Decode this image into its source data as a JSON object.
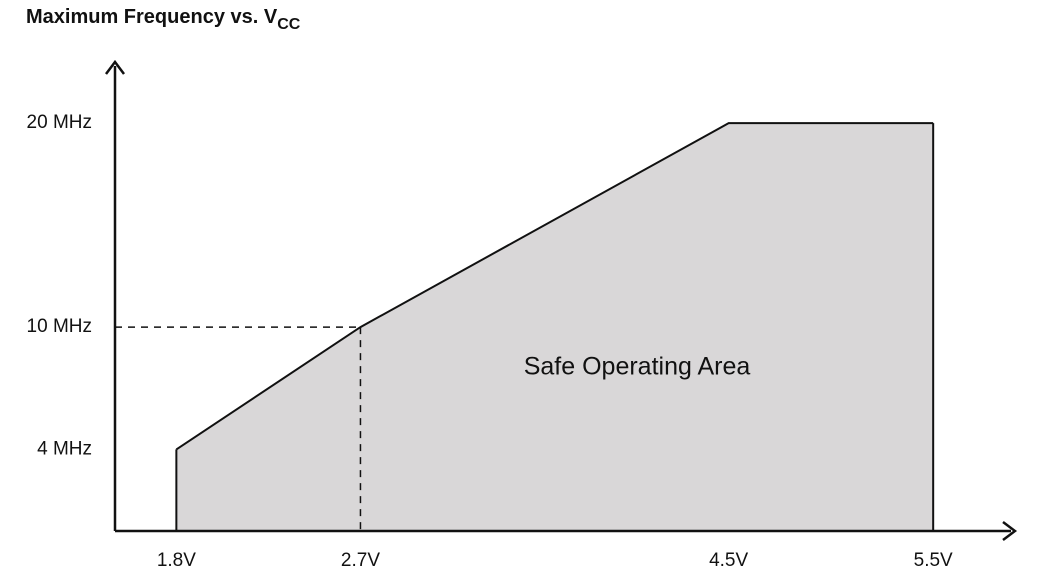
{
  "chart_data": {
    "type": "area",
    "title": "Maximum Frequency vs. V",
    "title_subscript": "CC",
    "x": [
      1.8,
      2.7,
      4.5,
      5.5
    ],
    "series": [
      {
        "values": [
          4,
          10,
          20,
          20
        ],
        "color": "#d9d7d8"
      }
    ],
    "xlim": [
      1.5,
      5.9
    ],
    "ylim": [
      0,
      23
    ],
    "xticks": [
      {
        "value": 1.8,
        "label": "1.8V"
      },
      {
        "value": 2.7,
        "label": "2.7V"
      },
      {
        "value": 4.5,
        "label": "4.5V"
      },
      {
        "value": 5.5,
        "label": "5.5V"
      }
    ],
    "yticks": [
      {
        "value": 4,
        "label": "4 MHz"
      },
      {
        "value": 10,
        "label": "10 MHz"
      },
      {
        "value": 20,
        "label": "20 MHz"
      }
    ],
    "annotation": "Safe Operating Area"
  }
}
